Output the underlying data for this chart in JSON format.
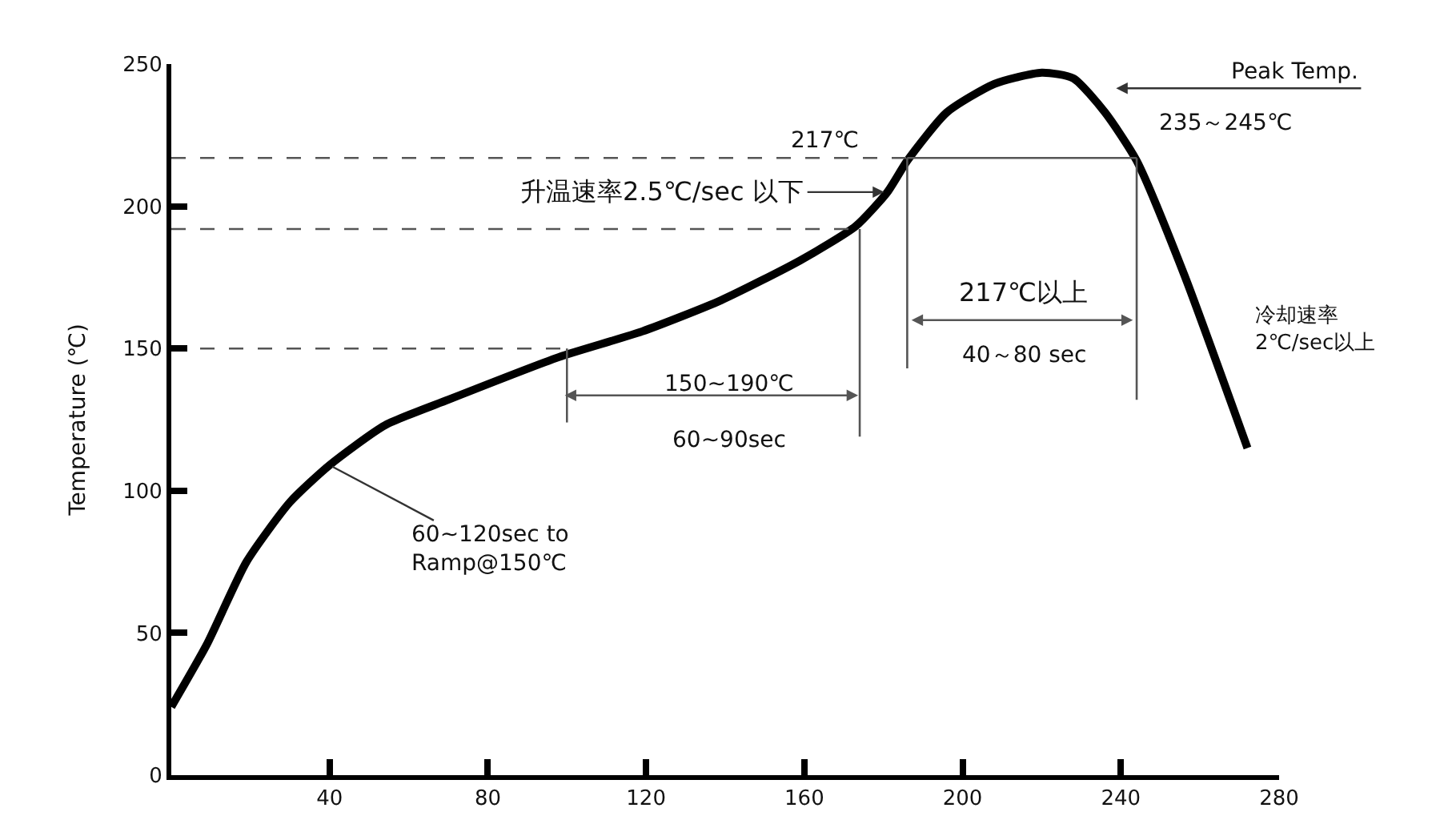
{
  "chart_data": {
    "type": "line",
    "ylabel": "Temperature (℃)",
    "xlim": [
      0,
      280
    ],
    "xticks": [
      40,
      80,
      120,
      160,
      200,
      240,
      280
    ],
    "ylim": [
      0,
      250
    ],
    "yticks": [
      0,
      50,
      100,
      150,
      200,
      250
    ],
    "grid": false,
    "marker": "none",
    "line_style": "solid",
    "series": [
      {
        "color": "#000000",
        "x": [
          0,
          9,
          19,
          30,
          40,
          54,
          70,
          98,
          119,
          139,
          159,
          173,
          181,
          186,
          196,
          208,
          220,
          228,
          236,
          244,
          256,
          272
        ],
        "values": [
          24,
          46,
          75,
          96,
          109,
          123,
          132,
          147,
          156,
          167,
          181,
          193,
          205,
          216,
          233,
          243,
          247,
          245,
          233,
          216,
          176,
          115
        ]
      },
      {
        "color": "#555555",
        "line_style": "dashed",
        "x": [
          0,
          186
        ],
        "values": [
          217,
          217
        ]
      },
      {
        "color": "#555555",
        "line_style": "dashed",
        "x": [
          0,
          174
        ],
        "values": [
          192,
          192
        ]
      },
      {
        "color": "#555555",
        "line_style": "dashed",
        "x": [
          0,
          100
        ],
        "values": [
          150,
          150
        ]
      },
      {
        "color": "#555555",
        "x": [
          186,
          244
        ],
        "values": [
          217,
          217
        ]
      },
      {
        "color": "#555555",
        "x": [
          100,
          100
        ],
        "values": [
          150,
          124
        ]
      },
      {
        "color": "#555555",
        "x": [
          174,
          174
        ],
        "values": [
          192,
          119
        ]
      },
      {
        "color": "#555555",
        "x": [
          186,
          186
        ],
        "values": [
          217,
          143
        ]
      },
      {
        "color": "#555555",
        "x": [
          244,
          244
        ],
        "values": [
          217,
          132
        ]
      }
    ],
    "annotations": [
      "Peak Temp.",
      "235～245℃",
      "217℃",
      {
        "text": "升温速率2.5℃/sec 以下",
        "x": 181,
        "y": 205
      },
      "150~190℃",
      "60~90sec",
      "217℃以上",
      "40～80 sec",
      {
        "text": "60~120sec to\nRamp@150℃",
        "x": 40,
        "y": 109
      },
      "冷却速率\n2℃/sec以上"
    ]
  }
}
